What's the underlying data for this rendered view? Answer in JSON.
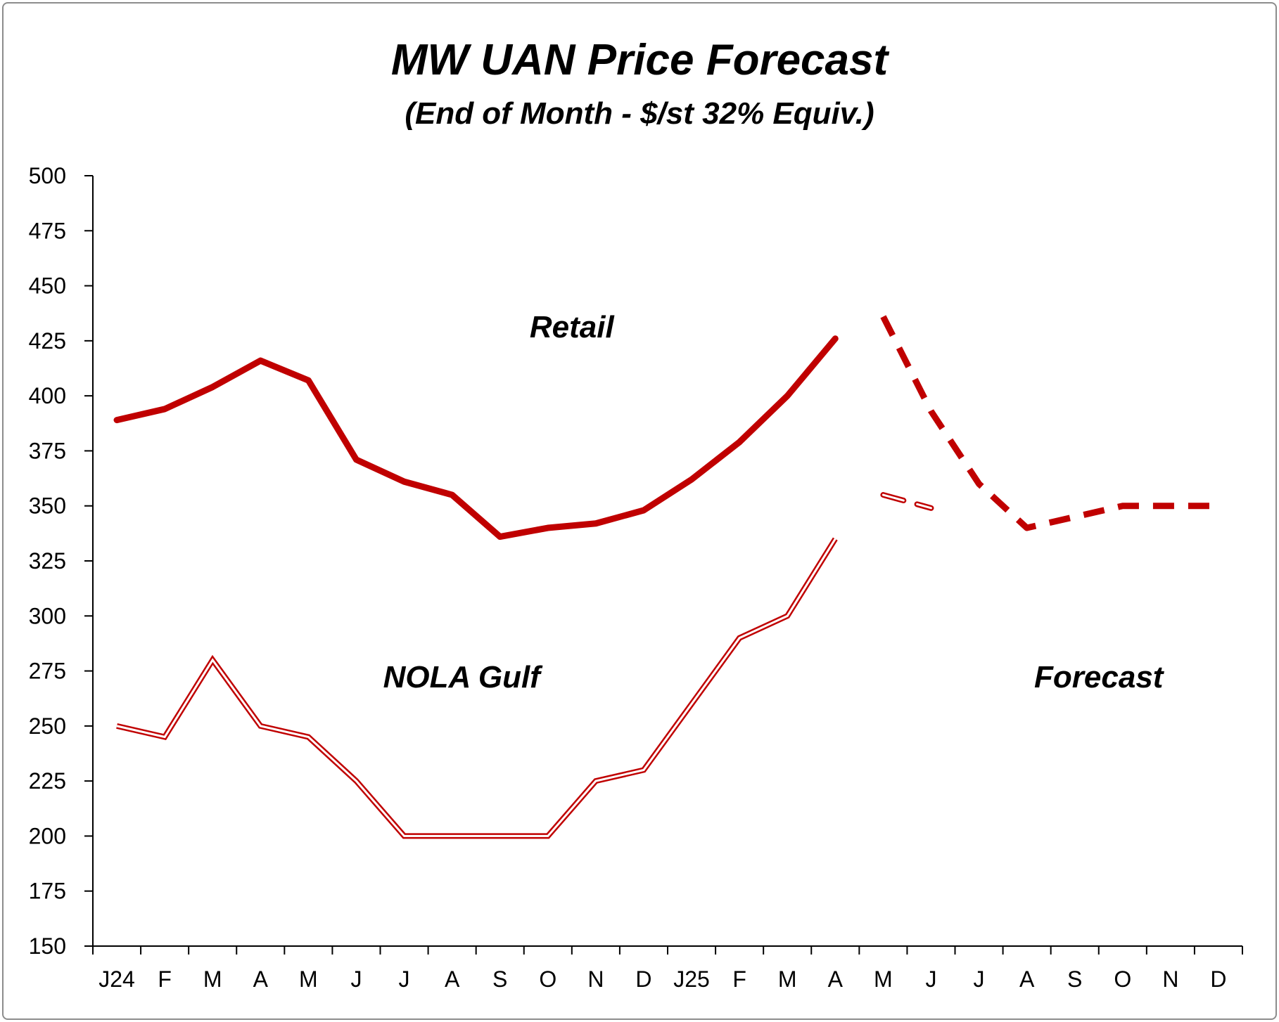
{
  "chart_data": {
    "type": "line",
    "title": "MW UAN Price Forecast",
    "subtitle": "(End of Month - $/st 32% Equiv.)",
    "xlabel": "",
    "ylabel": "",
    "ylim": [
      150,
      500
    ],
    "yticks": [
      150,
      175,
      200,
      225,
      250,
      275,
      300,
      325,
      350,
      375,
      400,
      425,
      450,
      475,
      500
    ],
    "categories": [
      "J24",
      "F",
      "M",
      "A",
      "M",
      "J",
      "J",
      "A",
      "S",
      "O",
      "N",
      "D",
      "J25",
      "F",
      "M",
      "A",
      "M",
      "J",
      "J",
      "A",
      "S",
      "O",
      "N",
      "D"
    ],
    "grid": false,
    "legend": "none",
    "colors": {
      "series": "#c00000",
      "axis": "#000000",
      "frame": "#8c8c8c"
    },
    "series": [
      {
        "name": "Retail",
        "style": "solid-thick",
        "values": [
          389,
          394,
          404,
          416,
          407,
          371,
          361,
          355,
          336,
          340,
          342,
          348,
          362,
          379,
          400,
          426,
          null,
          null,
          null,
          null,
          null,
          null,
          null,
          null
        ]
      },
      {
        "name": "NOLA Gulf",
        "style": "double-line",
        "values": [
          250,
          245,
          280,
          250,
          245,
          225,
          200,
          200,
          200,
          200,
          225,
          230,
          260,
          290,
          300,
          335,
          null,
          null,
          null,
          null,
          null,
          null,
          null,
          null
        ]
      },
      {
        "name": "Retail Forecast",
        "style": "dashed-thick",
        "values": [
          null,
          null,
          null,
          null,
          null,
          null,
          null,
          null,
          null,
          null,
          null,
          null,
          null,
          null,
          null,
          null,
          436,
          393,
          360,
          340,
          345,
          350,
          350,
          350
        ]
      },
      {
        "name": "NOLA Gulf Forecast",
        "style": "double-dashed",
        "values": [
          null,
          null,
          null,
          null,
          null,
          null,
          null,
          null,
          null,
          null,
          null,
          null,
          null,
          null,
          null,
          null,
          355,
          349,
          null,
          null,
          null,
          null,
          null,
          null
        ]
      }
    ],
    "annotations": [
      {
        "text": "Retail",
        "x": "A",
        "x_index": 9.5,
        "y": 431
      },
      {
        "text": "NOLA Gulf",
        "x": "A",
        "x_index": 7.2,
        "y": 272
      },
      {
        "text": "Forecast",
        "x": "S",
        "x_index": 20.5,
        "y": 272
      }
    ]
  }
}
